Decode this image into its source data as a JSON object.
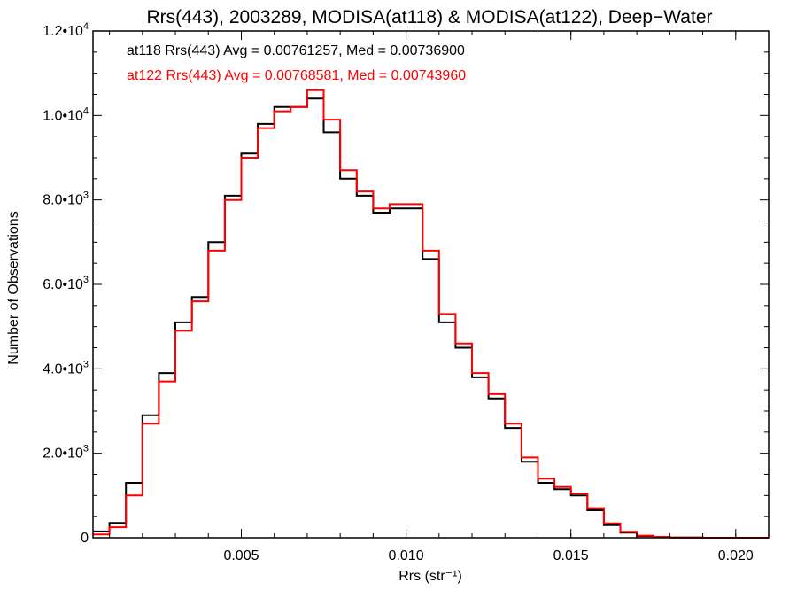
{
  "chart_data": {
    "type": "line",
    "title": "Rrs(443), 2003289, MODISA(at118) & MODISA(at122), Deep−Water",
    "xlabel": "Rrs (str⁻¹)",
    "ylabel": "Number of Observations",
    "xlim": [
      0.0005,
      0.021
    ],
    "ylim": [
      0,
      12000
    ],
    "xticks": [
      {
        "value": 0.005,
        "label": "0.005"
      },
      {
        "value": 0.01,
        "label": "0.010"
      },
      {
        "value": 0.015,
        "label": "0.015"
      },
      {
        "value": 0.02,
        "label": "0.020"
      }
    ],
    "yticks": [
      {
        "value": 0,
        "mant": "0",
        "exp": ""
      },
      {
        "value": 2000,
        "mant": "2.0•10",
        "exp": "3"
      },
      {
        "value": 4000,
        "mant": "4.0•10",
        "exp": "3"
      },
      {
        "value": 6000,
        "mant": "6.0•10",
        "exp": "3"
      },
      {
        "value": 8000,
        "mant": "8.0•10",
        "exp": "3"
      },
      {
        "value": 10000,
        "mant": "1.0•10",
        "exp": "4"
      },
      {
        "value": 12000,
        "mant": "1.2•10",
        "exp": "4"
      }
    ],
    "grid": false,
    "legend": "top-left",
    "step": true,
    "x": [
      0.0005,
      0.001,
      0.0015,
      0.002,
      0.0025,
      0.003,
      0.0035,
      0.004,
      0.0045,
      0.005,
      0.0055,
      0.006,
      0.0065,
      0.007,
      0.0075,
      0.008,
      0.0085,
      0.009,
      0.0095,
      0.01,
      0.0105,
      0.011,
      0.0115,
      0.012,
      0.0125,
      0.013,
      0.0135,
      0.014,
      0.0145,
      0.015,
      0.0155,
      0.016,
      0.0165,
      0.017,
      0.0175,
      0.018,
      0.019,
      0.02,
      0.021
    ],
    "series": [
      {
        "name": "at118",
        "color": "#000000",
        "legend_text": "at118 Rrs(443) Avg = 0.00761257, Med = 0.00736900",
        "values": [
          150,
          350,
          1300,
          2900,
          3900,
          5100,
          5700,
          7000,
          8100,
          9100,
          9800,
          10200,
          10200,
          10400,
          9600,
          8500,
          8100,
          7700,
          7800,
          7800,
          6600,
          5100,
          4500,
          3800,
          3300,
          2600,
          1800,
          1300,
          1150,
          1000,
          650,
          300,
          120,
          40,
          15,
          5,
          0,
          0,
          0
        ]
      },
      {
        "name": "at122",
        "color": "#ff0000",
        "legend_text": "at122 Rrs(443) Avg = 0.00768581, Med = 0.00743960",
        "values": [
          80,
          250,
          1000,
          2700,
          3700,
          4900,
          5600,
          6800,
          8000,
          9000,
          9700,
          10100,
          10200,
          10600,
          9900,
          8700,
          8200,
          7800,
          7900,
          7900,
          6800,
          5300,
          4600,
          3900,
          3400,
          2700,
          1900,
          1400,
          1200,
          1050,
          700,
          340,
          140,
          50,
          20,
          5,
          0,
          0,
          0
        ]
      }
    ]
  }
}
